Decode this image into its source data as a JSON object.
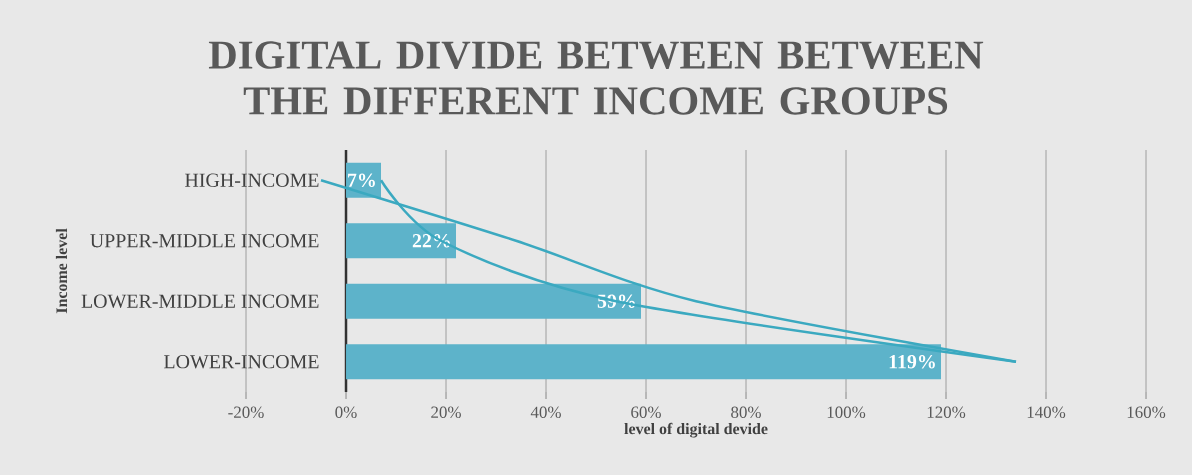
{
  "chart_data": {
    "type": "bar",
    "orientation": "horizontal",
    "title": "DIGITAL DIVIDE BETWEEN BETWEEN THE DIFFERENT INCOME GROUPS",
    "xlabel": "level of digital devide",
    "ylabel": "Income level",
    "categories": [
      "HIGH-INCOME",
      "UPPER-MIDDLE INCOME",
      "LOWER-MIDDLE INCOME",
      "LOWER-INCOME"
    ],
    "series": [
      {
        "color": "#5db3ca",
        "values": [
          7,
          22,
          59,
          119
        ],
        "value_labels": [
          "7%",
          "22%",
          "59%",
          "119%"
        ]
      },
      {
        "type": "line",
        "color": "#3ba9c0",
        "values": [
          -5,
          34,
          70,
          134
        ]
      },
      {
        "type": "line",
        "color": "#3ba9c0",
        "values": [
          7,
          19,
          54,
          134
        ]
      }
    ],
    "xlim": [
      -20,
      160
    ],
    "xticks": [
      {
        "value": -20,
        "label": "-20%"
      },
      {
        "value": 0,
        "label": "0%"
      },
      {
        "value": 20,
        "label": "20%"
      },
      {
        "value": 40,
        "label": "40%"
      },
      {
        "value": 60,
        "label": "60%"
      },
      {
        "value": 80,
        "label": "80%"
      },
      {
        "value": 100,
        "label": "100%"
      },
      {
        "value": 120,
        "label": "120%"
      },
      {
        "value": 140,
        "label": "140%"
      },
      {
        "value": 160,
        "label": "160%"
      }
    ],
    "grid": "x"
  }
}
